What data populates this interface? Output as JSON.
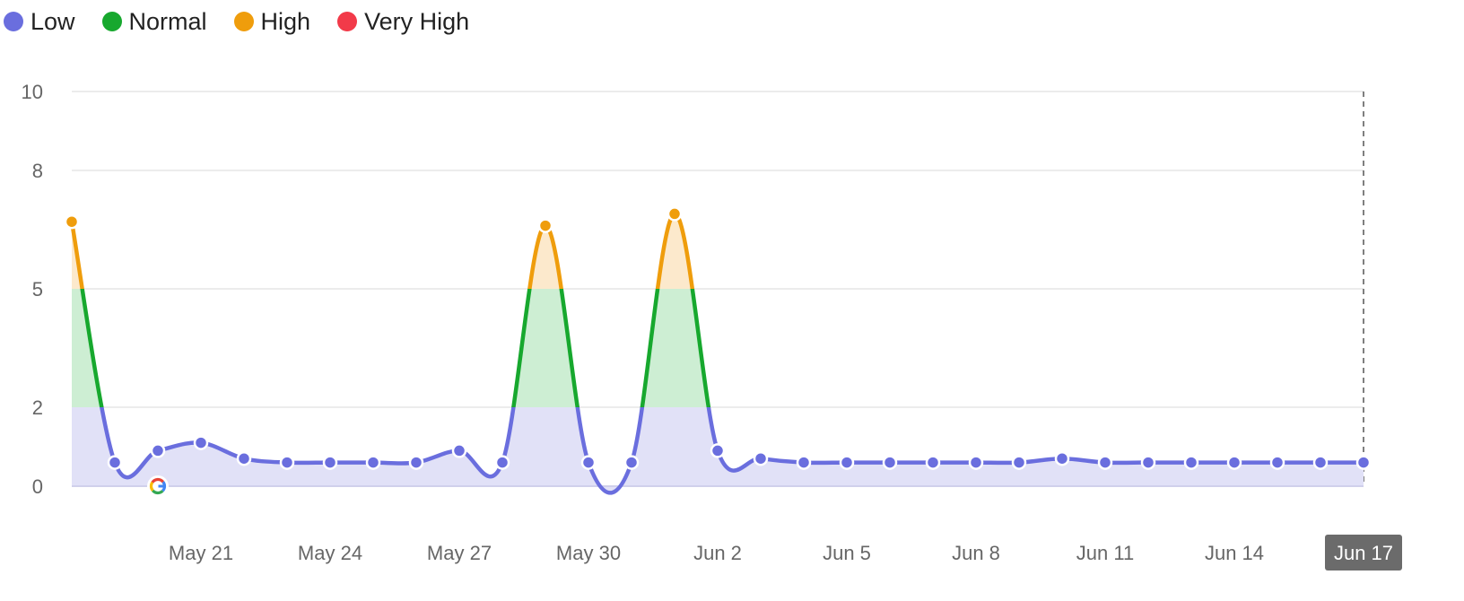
{
  "legend": [
    {
      "label": "Low",
      "color": "#6a6ede"
    },
    {
      "label": "Normal",
      "color": "#17a82e"
    },
    {
      "label": "High",
      "color": "#ef9d0c"
    },
    {
      "label": "Very High",
      "color": "#f23a49"
    }
  ],
  "chart_data": {
    "type": "line",
    "x": [
      "May 18",
      "May 19",
      "May 20",
      "May 21",
      "May 22",
      "May 23",
      "May 24",
      "May 25",
      "May 26",
      "May 27",
      "May 28",
      "May 29",
      "May 30",
      "May 31",
      "Jun 1",
      "Jun 2",
      "Jun 3",
      "Jun 4",
      "Jun 5",
      "Jun 6",
      "Jun 7",
      "Jun 8",
      "Jun 9",
      "Jun 10",
      "Jun 11",
      "Jun 12",
      "Jun 13",
      "Jun 14",
      "Jun 15",
      "Jun 16",
      "Jun 17"
    ],
    "values": [
      6.7,
      0.6,
      0.9,
      1.1,
      0.7,
      0.6,
      0.6,
      0.6,
      0.6,
      0.9,
      0.6,
      6.6,
      0.6,
      0.6,
      6.9,
      0.9,
      0.7,
      0.6,
      0.6,
      0.6,
      0.6,
      0.6,
      0.6,
      0.7,
      0.6,
      0.6,
      0.6,
      0.6,
      0.6,
      0.6,
      0.6
    ],
    "ylim": [
      0,
      10
    ],
    "yticks": [
      "0",
      "2",
      "5",
      "8",
      "10"
    ],
    "xticks": [
      "May 21",
      "May 24",
      "May 27",
      "May 30",
      "Jun 2",
      "Jun 5",
      "Jun 8",
      "Jun 11",
      "Jun 14",
      "Jun 17"
    ],
    "highlighted_x": "Jun 17",
    "bands": [
      {
        "name": "Low",
        "from": 0,
        "to": 2,
        "color": "#6a6ede",
        "fill": "#e1e1f7"
      },
      {
        "name": "Normal",
        "from": 2,
        "to": 5,
        "color": "#17a82e",
        "fill": "#cdeed3"
      },
      {
        "name": "High",
        "from": 5,
        "to": 8,
        "color": "#ef9d0c",
        "fill": "#fce9cc"
      },
      {
        "name": "Very High",
        "from": 8,
        "to": 10,
        "color": "#f23a49",
        "fill": "#fcd3d6"
      }
    ],
    "annotation": {
      "x": "May 20",
      "icon": "google-icon"
    },
    "grid": true
  }
}
